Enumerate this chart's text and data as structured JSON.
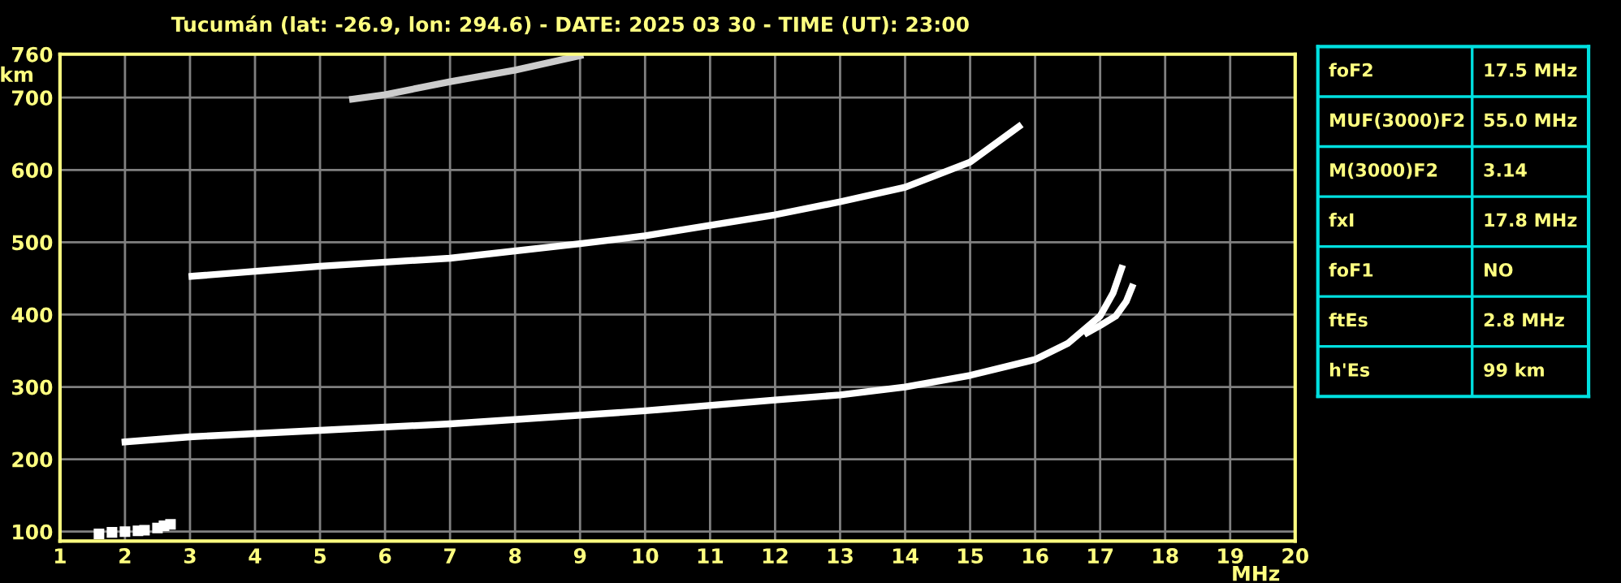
{
  "chart_data": [
    {
      "type": "line",
      "title": "Tucumán (lat: -26.9, lon: 294.6) - DATE: 2025 03 30 - TIME (UT): 23:00",
      "xlabel": "MHz",
      "ylabel": "km",
      "xlim": [
        1,
        20
      ],
      "xticks": [
        1,
        2,
        3,
        4,
        5,
        6,
        7,
        8,
        9,
        10,
        11,
        12,
        13,
        14,
        15,
        16,
        17,
        18,
        19,
        20
      ],
      "ylim": [
        87,
        760
      ],
      "yticks": [
        100,
        200,
        300,
        400,
        500,
        600,
        700,
        760
      ],
      "grid": true,
      "marker": "none",
      "line_style": "solid",
      "series": [
        {
          "color": "#ffffff",
          "x": [
            2.0,
            3.0,
            5.0,
            7.0,
            10.0,
            12.0,
            13.0,
            14.0,
            15.0,
            16.0,
            16.5,
            17.0,
            17.2,
            17.33
          ],
          "values": [
            224,
            231,
            240,
            249,
            267,
            282,
            289,
            300,
            316,
            338,
            360,
            398,
            430,
            464
          ]
        },
        {
          "color": "#ffffff",
          "x": [
            16.8,
            17.0,
            17.24,
            17.4,
            17.49
          ],
          "values": [
            375,
            385,
            398,
            418,
            438
          ]
        },
        {
          "color": "#ffffff",
          "x": [
            3.03,
            5.0,
            7.0,
            9.0,
            10.0,
            12.0,
            13.0,
            14.0,
            15.0,
            15.75
          ],
          "values": [
            453,
            467,
            478,
            498,
            509,
            538,
            556,
            576,
            611,
            660
          ]
        },
        {
          "color": "#cccccc",
          "x": [
            5.5,
            6.0,
            7.0,
            8.0,
            9.0
          ],
          "values": [
            698,
            704,
            722,
            738,
            758
          ]
        },
        {
          "type": "scatter",
          "marker": "square",
          "color": "#ffffff",
          "x": [
            1.6,
            1.8,
            2.0,
            2.2,
            2.3,
            2.5,
            2.6,
            2.7
          ],
          "values": [
            97,
            99,
            100,
            101,
            102,
            105,
            108,
            110
          ]
        }
      ]
    },
    {
      "type": "other",
      "categories": [
        "foF2",
        "MUF(3000)F2",
        "M(3000)F2",
        "fxI",
        "foF1",
        "ftEs",
        "h'Es"
      ],
      "value_labels": [
        "17.5 MHz",
        "55.0 MHz",
        "3.14",
        "17.8 MHz",
        "NO",
        "2.8 MHz",
        "99 km"
      ]
    }
  ]
}
